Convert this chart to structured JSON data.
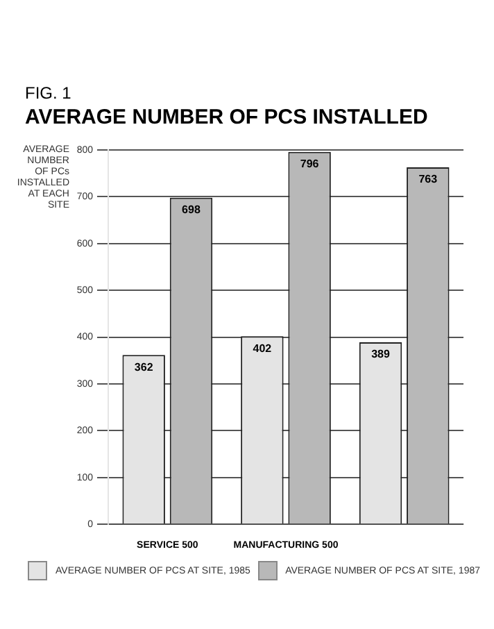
{
  "chart_data": {
    "type": "bar",
    "subtitle": "FIG. 1",
    "title": "AVERAGE NUMBER OF PCS INSTALLED",
    "ylabel": "AVERAGE NUMBER OF PCs INSTALLED AT EACH SITE",
    "categories": [
      "SERVICE 500",
      "MANUFACTURING 500",
      null
    ],
    "series": [
      {
        "name": "AVERAGE NUMBER OF PCS AT SITE, 1985",
        "color": "#e4e4e4",
        "values": [
          362,
          402,
          389
        ]
      },
      {
        "name": "AVERAGE NUMBER OF PCS AT SITE, 1987",
        "color": "#b8b8b8",
        "values": [
          698,
          796,
          763
        ]
      }
    ],
    "ylim": [
      0,
      800
    ],
    "yticks": [
      0,
      100,
      200,
      300,
      400,
      500,
      600,
      700,
      800
    ],
    "grid": "y",
    "legend": "bottom",
    "data_labels": true
  }
}
